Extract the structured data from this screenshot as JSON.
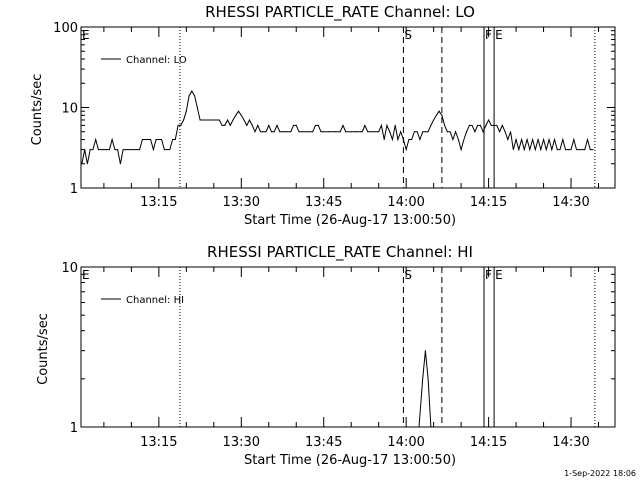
{
  "chart_data": [
    {
      "type": "line",
      "title": "RHESSI PARTICLE_RATE Channel: LO",
      "xlabel": "Start Time (26-Aug-17 13:00:50)",
      "ylabel": "Counts/sec",
      "yscale": "log",
      "ylim": [
        1,
        100
      ],
      "xlim": [
        "13:00:50",
        "14:38:00"
      ],
      "yticks": [
        "1",
        "10",
        "100"
      ],
      "xticks": [
        "13:15",
        "13:30",
        "13:45",
        "14:00",
        "14:15",
        "14:30"
      ],
      "legend": {
        "placement": "top-left",
        "entries": [
          "Channel: LO"
        ]
      },
      "grid": false,
      "series": [
        {
          "name": "Channel: LO",
          "points": [
            [
              "13:01:00",
              2
            ],
            [
              "13:01:30",
              3
            ],
            [
              "13:02:00",
              2
            ],
            [
              "13:02:30",
              3
            ],
            [
              "13:03:00",
              3
            ],
            [
              "13:03:30",
              4
            ],
            [
              "13:04:00",
              3
            ],
            [
              "13:04:30",
              3
            ],
            [
              "13:05:00",
              3
            ],
            [
              "13:05:30",
              3
            ],
            [
              "13:06:00",
              3
            ],
            [
              "13:06:30",
              4
            ],
            [
              "13:07:00",
              3
            ],
            [
              "13:07:30",
              3
            ],
            [
              "13:08:00",
              2
            ],
            [
              "13:08:30",
              3
            ],
            [
              "13:09:00",
              3
            ],
            [
              "13:09:30",
              3
            ],
            [
              "13:10:00",
              3
            ],
            [
              "13:10:30",
              3
            ],
            [
              "13:11:00",
              3
            ],
            [
              "13:11:30",
              3
            ],
            [
              "13:12:00",
              4
            ],
            [
              "13:12:30",
              4
            ],
            [
              "13:13:00",
              4
            ],
            [
              "13:13:30",
              4
            ],
            [
              "13:14:00",
              3
            ],
            [
              "13:14:30",
              4
            ],
            [
              "13:15:00",
              4
            ],
            [
              "13:15:30",
              4
            ],
            [
              "13:16:00",
              3
            ],
            [
              "13:16:30",
              3
            ],
            [
              "13:17:00",
              3
            ],
            [
              "13:17:30",
              4
            ],
            [
              "13:18:00",
              4
            ],
            [
              "13:18:30",
              6
            ],
            [
              "13:19:00",
              6
            ],
            [
              "13:19:30",
              7
            ],
            [
              "13:20:00",
              9
            ],
            [
              "13:20:30",
              14
            ],
            [
              "13:21:00",
              16
            ],
            [
              "13:21:30",
              14
            ],
            [
              "13:22:00",
              10
            ],
            [
              "13:22:30",
              7
            ],
            [
              "13:23:00",
              7
            ],
            [
              "13:24:00",
              7
            ],
            [
              "13:25:00",
              7
            ],
            [
              "13:26:00",
              7
            ],
            [
              "13:26:30",
              6
            ],
            [
              "13:27:00",
              6
            ],
            [
              "13:27:30",
              7
            ],
            [
              "13:28:00",
              6
            ],
            [
              "13:28:30",
              7
            ],
            [
              "13:29:00",
              8
            ],
            [
              "13:29:30",
              9
            ],
            [
              "13:30:00",
              8
            ],
            [
              "13:30:30",
              7
            ],
            [
              "13:31:00",
              6
            ],
            [
              "13:31:30",
              7
            ],
            [
              "13:32:00",
              6
            ],
            [
              "13:32:30",
              5
            ],
            [
              "13:33:00",
              6
            ],
            [
              "13:33:30",
              5
            ],
            [
              "13:34:00",
              5
            ],
            [
              "13:34:30",
              5
            ],
            [
              "13:35:00",
              6
            ],
            [
              "13:35:30",
              5
            ],
            [
              "13:36:00",
              5
            ],
            [
              "13:36:30",
              6
            ],
            [
              "13:37:00",
              5
            ],
            [
              "13:37:30",
              5
            ],
            [
              "13:38:00",
              5
            ],
            [
              "13:39:00",
              5
            ],
            [
              "13:39:30",
              6
            ],
            [
              "13:40:00",
              6
            ],
            [
              "13:40:30",
              5
            ],
            [
              "13:41:00",
              5
            ],
            [
              "13:42:00",
              5
            ],
            [
              "13:43:00",
              5
            ],
            [
              "13:43:30",
              6
            ],
            [
              "13:44:00",
              6
            ],
            [
              "13:44:30",
              5
            ],
            [
              "13:45:00",
              5
            ],
            [
              "13:46:00",
              5
            ],
            [
              "13:47:00",
              5
            ],
            [
              "13:48:00",
              5
            ],
            [
              "13:48:30",
              6
            ],
            [
              "13:49:00",
              5
            ],
            [
              "13:50:00",
              5
            ],
            [
              "13:51:00",
              5
            ],
            [
              "13:52:00",
              5
            ],
            [
              "13:52:30",
              6
            ],
            [
              "13:53:00",
              5
            ],
            [
              "13:54:00",
              5
            ],
            [
              "13:55:00",
              5
            ],
            [
              "13:55:30",
              6
            ],
            [
              "13:56:00",
              4
            ],
            [
              "13:56:30",
              6
            ],
            [
              "13:57:00",
              5
            ],
            [
              "13:57:30",
              4
            ],
            [
              "13:58:00",
              6
            ],
            [
              "13:58:30",
              4
            ],
            [
              "13:59:00",
              5
            ],
            [
              "13:59:30",
              4
            ],
            [
              "14:00:00",
              3
            ],
            [
              "14:00:30",
              4
            ],
            [
              "14:01:00",
              4
            ],
            [
              "14:01:30",
              5
            ],
            [
              "14:02:00",
              5
            ],
            [
              "14:02:30",
              4
            ],
            [
              "14:03:00",
              5
            ],
            [
              "14:03:30",
              5
            ],
            [
              "14:04:00",
              5
            ],
            [
              "14:04:30",
              6
            ],
            [
              "14:05:00",
              7
            ],
            [
              "14:05:30",
              8
            ],
            [
              "14:06:00",
              9
            ],
            [
              "14:06:30",
              8
            ],
            [
              "14:07:00",
              6
            ],
            [
              "14:07:30",
              5
            ],
            [
              "14:08:00",
              5
            ],
            [
              "14:08:30",
              4
            ],
            [
              "14:09:00",
              5
            ],
            [
              "14:09:30",
              4
            ],
            [
              "14:10:00",
              3
            ],
            [
              "14:10:30",
              4
            ],
            [
              "14:11:00",
              5
            ],
            [
              "14:11:30",
              6
            ],
            [
              "14:12:00",
              6
            ],
            [
              "14:12:30",
              5
            ],
            [
              "14:13:00",
              6
            ],
            [
              "14:13:30",
              6
            ],
            [
              "14:14:00",
              5
            ],
            [
              "14:14:30",
              6
            ],
            [
              "14:15:00",
              7
            ],
            [
              "14:15:30",
              6
            ],
            [
              "14:16:00",
              6
            ],
            [
              "14:16:30",
              6
            ],
            [
              "14:17:00",
              5
            ],
            [
              "14:17:30",
              6
            ],
            [
              "14:18:00",
              5
            ],
            [
              "14:18:30",
              4
            ],
            [
              "14:19:00",
              5
            ],
            [
              "14:19:30",
              3
            ],
            [
              "14:20:00",
              4
            ],
            [
              "14:20:30",
              3
            ],
            [
              "14:21:00",
              4
            ],
            [
              "14:21:30",
              3
            ],
            [
              "14:22:00",
              4
            ],
            [
              "14:22:30",
              3
            ],
            [
              "14:23:00",
              4
            ],
            [
              "14:23:30",
              3
            ],
            [
              "14:24:00",
              4
            ],
            [
              "14:24:30",
              3
            ],
            [
              "14:25:00",
              4
            ],
            [
              "14:25:30",
              3
            ],
            [
              "14:26:00",
              4
            ],
            [
              "14:26:30",
              3
            ],
            [
              "14:27:00",
              4
            ],
            [
              "14:27:30",
              3
            ],
            [
              "14:28:00",
              3
            ],
            [
              "14:28:30",
              4
            ],
            [
              "14:29:00",
              3
            ],
            [
              "14:29:30",
              3
            ],
            [
              "14:30:00",
              3
            ],
            [
              "14:30:30",
              4
            ],
            [
              "14:31:00",
              3
            ],
            [
              "14:31:30",
              3
            ],
            [
              "14:32:00",
              3
            ],
            [
              "14:32:30",
              3
            ],
            [
              "14:33:00",
              4
            ],
            [
              "14:33:30",
              3
            ],
            [
              "14:34:00",
              3
            ]
          ]
        }
      ],
      "markers": [
        {
          "label": "E",
          "time": "13:00:50",
          "style": "dotted"
        },
        {
          "label": "",
          "time": "13:18:50",
          "style": "dotted"
        },
        {
          "label": "S",
          "time": "13:59:30",
          "style": "dashed"
        },
        {
          "label": "",
          "time": "14:06:30",
          "style": "dashed"
        },
        {
          "label": "F",
          "time": "14:14:10",
          "style": "solid"
        },
        {
          "label": "E",
          "time": "14:16:00",
          "style": "solid"
        },
        {
          "label": "",
          "time": "14:34:20",
          "style": "dotted"
        }
      ]
    },
    {
      "type": "line",
      "title": "RHESSI PARTICLE_RATE Channel: HI",
      "xlabel": "Start Time (26-Aug-17 13:00:50)",
      "ylabel": "Counts/sec",
      "yscale": "log",
      "ylim": [
        1,
        10
      ],
      "xlim": [
        "13:00:50",
        "14:38:00"
      ],
      "yticks": [
        "1",
        "10"
      ],
      "xticks": [
        "13:15",
        "13:30",
        "13:45",
        "14:00",
        "14:15",
        "14:30"
      ],
      "legend": {
        "placement": "top-left",
        "entries": [
          "Channel: HI"
        ]
      },
      "grid": false,
      "series": [
        {
          "name": "Channel: HI",
          "points": [
            [
              "14:02:20",
              1
            ],
            [
              "14:03:00",
              2
            ],
            [
              "14:03:30",
              3
            ],
            [
              "14:04:00",
              2
            ],
            [
              "14:04:30",
              1
            ]
          ]
        }
      ],
      "markers": [
        {
          "label": "E",
          "time": "13:00:50",
          "style": "dotted"
        },
        {
          "label": "",
          "time": "13:18:50",
          "style": "dotted"
        },
        {
          "label": "S",
          "time": "13:59:30",
          "style": "dashed"
        },
        {
          "label": "",
          "time": "14:06:30",
          "style": "dashed"
        },
        {
          "label": "F",
          "time": "14:14:10",
          "style": "solid"
        },
        {
          "label": "E",
          "time": "14:16:00",
          "style": "solid"
        },
        {
          "label": "",
          "time": "14:34:20",
          "style": "dotted"
        }
      ]
    }
  ],
  "footer": {
    "timestamp": "1-Sep-2022 18:06"
  }
}
